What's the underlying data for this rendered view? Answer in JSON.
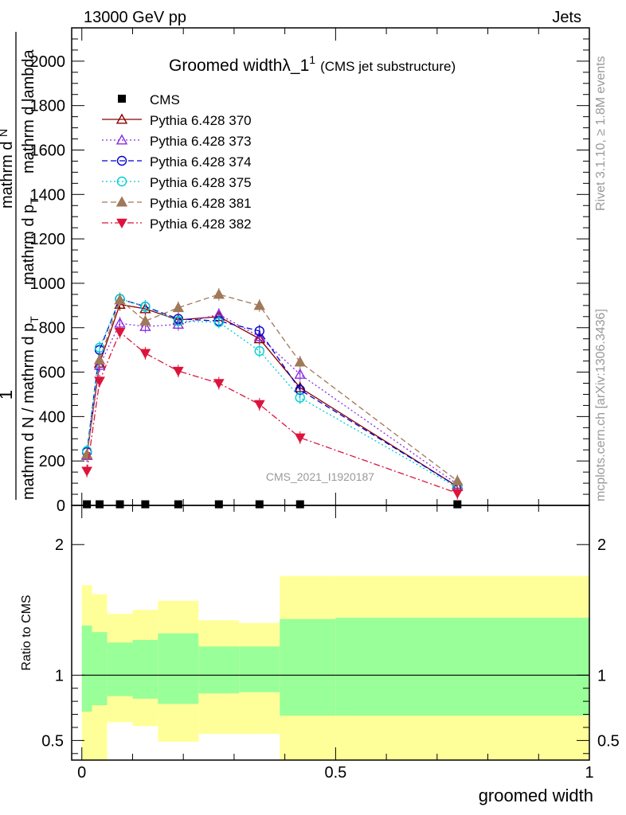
{
  "header": {
    "left": "13000 GeV pp",
    "right": "Jets"
  },
  "side_labels": {
    "rivet": "Rivet 3.1.10, ≥ 1.8M events",
    "mcplots": "mcplots.cern.ch [arXiv:1306.3436]"
  },
  "chart_data": [
    {
      "type": "line",
      "title": "Groomed width",
      "title_symbol": "λ_1",
      "title_sup": "1",
      "subtitle": "(CMS jet substructure)",
      "watermark": "CMS_2021_I1920187",
      "ylabel_numer": "1",
      "ylabel_numer2": "mathrm d",
      "ylabel_numer3": "N",
      "ylabel_denom": "mathrm d N / mathrm d p",
      "ylabel_denom_sub": "T",
      "ylabel_rest": "mathrm d p",
      "ylabel_rest_sub": "T",
      "ylabel_lambda": "mathrm d lambda",
      "xlim": [
        -0.02,
        1.0
      ],
      "ylim": [
        0,
        2150
      ],
      "yticks": [
        0,
        200,
        400,
        600,
        800,
        1000,
        1200,
        1400,
        1600,
        1800,
        2000
      ],
      "ytick_labels": [
        "0",
        "200",
        "400",
        "600",
        "800",
        "1000",
        "1200",
        "1400",
        "1600",
        "1800",
        "2000"
      ],
      "legend_position": "top-left",
      "x": [
        0.01,
        0.035,
        0.075,
        0.125,
        0.19,
        0.27,
        0.35,
        0.43,
        0.74
      ],
      "series": [
        {
          "name": "CMS",
          "color": "#000000",
          "marker": "square",
          "dash": "none",
          "values": [
            5,
            5,
            5,
            5,
            5,
            5,
            5,
            5,
            5
          ]
        },
        {
          "name": "Pythia 6.428 370",
          "color": "#8b0000",
          "marker": "triangle-open",
          "dash": "solid",
          "values": [
            225,
            640,
            905,
            885,
            835,
            850,
            750,
            530,
            85
          ]
        },
        {
          "name": "Pythia 6.428 373",
          "color": "#8a2be2",
          "marker": "triangle-open",
          "dash": "dotted",
          "values": [
            225,
            630,
            820,
            805,
            815,
            860,
            760,
            590,
            95
          ]
        },
        {
          "name": "Pythia 6.428 374",
          "color": "#0000cd",
          "marker": "circle-open",
          "dash": "dashed",
          "values": [
            240,
            700,
            930,
            895,
            840,
            830,
            785,
            520,
            85
          ]
        },
        {
          "name": "Pythia 6.428 375",
          "color": "#00ced1",
          "marker": "circle-open",
          "dash": "dotted",
          "values": [
            245,
            710,
            930,
            895,
            830,
            825,
            695,
            485,
            80
          ]
        },
        {
          "name": "Pythia 6.428 381",
          "color": "#a0785a",
          "marker": "triangle-filled",
          "dash": "dashed",
          "values": [
            230,
            655,
            925,
            830,
            890,
            950,
            900,
            645,
            110
          ]
        },
        {
          "name": "Pythia 6.428 382",
          "color": "#dc143c",
          "marker": "triangledown-filled",
          "dash": "dashdot",
          "values": [
            155,
            560,
            780,
            685,
            605,
            550,
            455,
            305,
            55
          ]
        }
      ]
    },
    {
      "type": "area",
      "ylabel": "Ratio to CMS",
      "xlabel": "groomed width",
      "xlim": [
        -0.02,
        1.0
      ],
      "ylim": [
        0.35,
        2.3
      ],
      "xticks": [
        0,
        0.5,
        1
      ],
      "xtick_labels": [
        "0",
        "0.5",
        "1"
      ],
      "yticks": [
        0.5,
        1,
        2
      ],
      "ytick_labels": [
        "0.5",
        "1",
        "2"
      ],
      "reference_line": 1,
      "bins": [
        {
          "lo": 0.0,
          "hi": 0.02,
          "yellow": [
            0.35,
            1.69
          ],
          "green": [
            0.72,
            1.38
          ]
        },
        {
          "lo": 0.02,
          "hi": 0.05,
          "yellow": [
            0.35,
            1.62
          ],
          "green": [
            0.77,
            1.33
          ]
        },
        {
          "lo": 0.05,
          "hi": 0.1,
          "yellow": [
            0.64,
            1.47
          ],
          "green": [
            0.84,
            1.25
          ]
        },
        {
          "lo": 0.1,
          "hi": 0.15,
          "yellow": [
            0.61,
            1.5
          ],
          "green": [
            0.82,
            1.27
          ]
        },
        {
          "lo": 0.15,
          "hi": 0.23,
          "yellow": [
            0.49,
            1.57
          ],
          "green": [
            0.78,
            1.32
          ]
        },
        {
          "lo": 0.23,
          "hi": 0.31,
          "yellow": [
            0.55,
            1.42
          ],
          "green": [
            0.86,
            1.22
          ]
        },
        {
          "lo": 0.31,
          "hi": 0.39,
          "yellow": [
            0.55,
            1.4
          ],
          "green": [
            0.87,
            1.22
          ]
        },
        {
          "lo": 0.39,
          "hi": 0.5,
          "yellow": [
            0.35,
            1.76
          ],
          "green": [
            0.69,
            1.43
          ]
        },
        {
          "lo": 0.5,
          "hi": 1.0,
          "yellow": [
            0.35,
            1.76
          ],
          "green": [
            0.69,
            1.44
          ]
        }
      ],
      "colors": {
        "yellow": "#ffff99",
        "green": "#99ff99"
      }
    }
  ]
}
